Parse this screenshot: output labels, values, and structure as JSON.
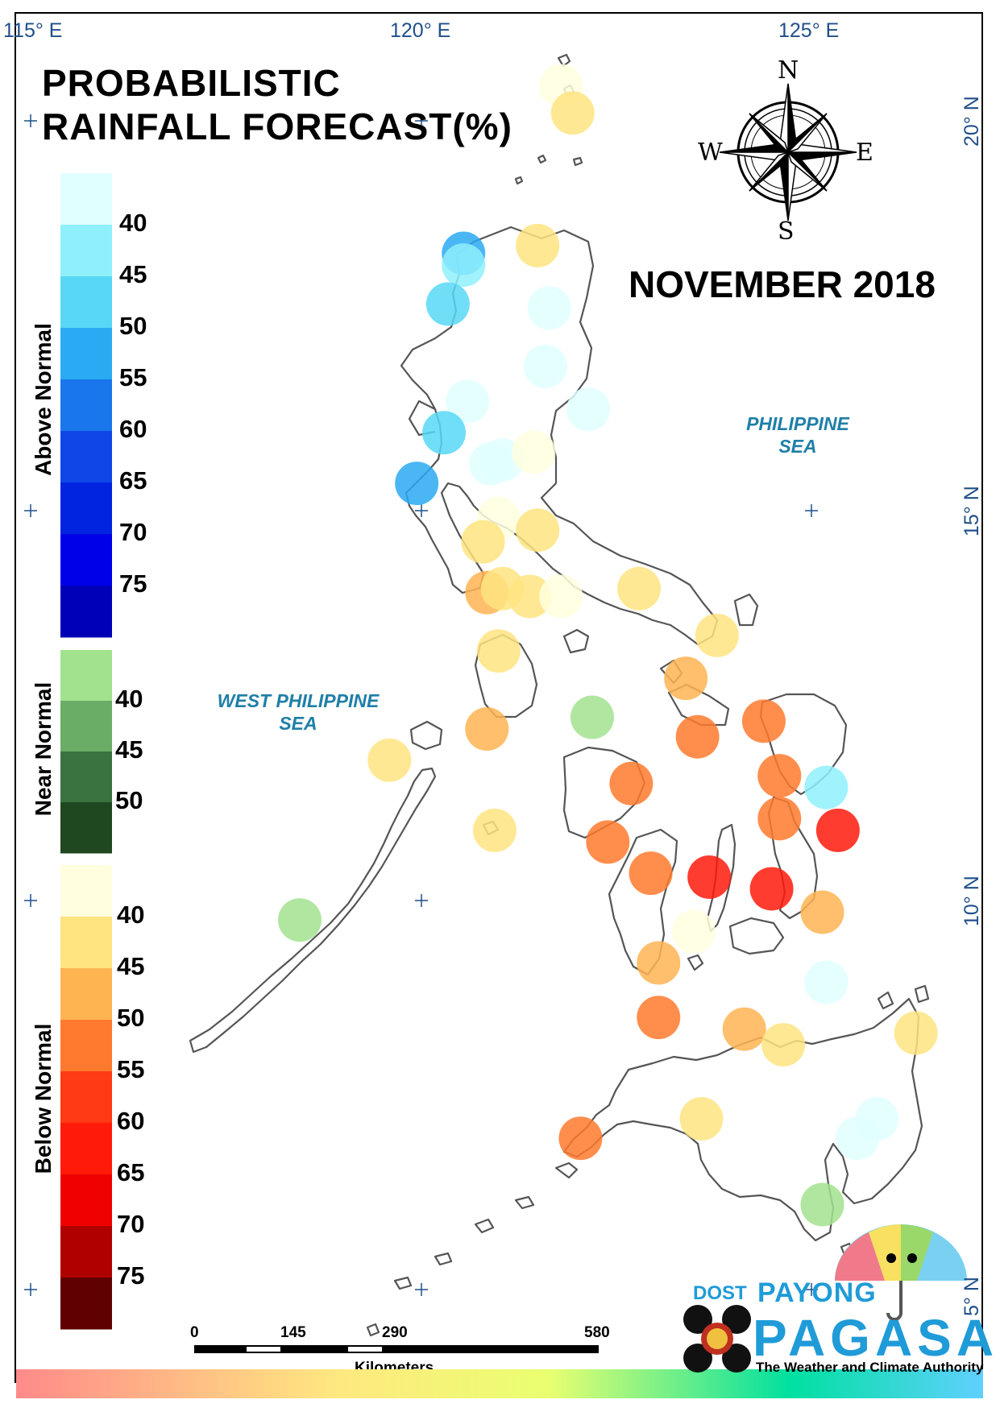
{
  "title_line1": "PROBABILISTIC",
  "title_line2": "RAINFALL FORECAST(%)",
  "period": "NOVEMBER 2018",
  "seas": {
    "east_line1": "PHILIPPINE",
    "east_line2": "SEA",
    "west_line1": "WEST PHILIPPINE",
    "west_line2": "SEA"
  },
  "graticule": {
    "lon": [
      "115° E",
      "120° E",
      "125° E"
    ],
    "lat": [
      "20° N",
      "15° N",
      "10° N",
      "5° N"
    ]
  },
  "compass": {
    "n": "N",
    "s": "S",
    "e": "E",
    "w": "W"
  },
  "legend": {
    "above_title": "Above Normal",
    "near_title": "Near Normal",
    "below_title": "Below Normal",
    "above_labels": [
      "40",
      "45",
      "50",
      "55",
      "60",
      "65",
      "70",
      "75"
    ],
    "near_labels": [
      "40",
      "45",
      "50"
    ],
    "below_labels": [
      "40",
      "45",
      "50",
      "55",
      "60",
      "65",
      "70",
      "75"
    ],
    "above_colors": [
      "#e0ffff",
      "#8ff0fb",
      "#58d8f6",
      "#2aaaf2",
      "#1976ec",
      "#0f46e8",
      "#0024e0",
      "#0000e8",
      "#0000b8"
    ],
    "near_colors": [
      "#a2e28e",
      "#6aad66",
      "#3a7240",
      "#1f4720"
    ],
    "below_colors": [
      "#ffffdf",
      "#ffe480",
      "#ffb452",
      "#ff7a2e",
      "#ff3a14",
      "#ff1a0a",
      "#f00000",
      "#b00000",
      "#600000"
    ]
  },
  "scale_bar": {
    "labels": [
      "0",
      "145",
      "290",
      "580"
    ],
    "unit": "Kilometers"
  },
  "logo": {
    "dost": "DOST",
    "payong": "PAYONG",
    "pagasa": "PAGASA",
    "tagline": "The Weather and Climate Authority"
  },
  "stations": [
    {
      "lon": 121.8,
      "lat": 20.45,
      "color": "#ffffdf"
    },
    {
      "lon": 121.95,
      "lat": 20.1,
      "color": "#ffe480"
    },
    {
      "lon": 120.55,
      "lat": 18.3,
      "color": "#2aaaf2"
    },
    {
      "lon": 120.55,
      "lat": 18.15,
      "color": "#8ff0fb"
    },
    {
      "lon": 120.35,
      "lat": 17.65,
      "color": "#58d8f6"
    },
    {
      "lon": 121.5,
      "lat": 18.4,
      "color": "#ffe480"
    },
    {
      "lon": 121.65,
      "lat": 17.6,
      "color": "#e0ffff"
    },
    {
      "lon": 121.6,
      "lat": 16.85,
      "color": "#e0ffff"
    },
    {
      "lon": 122.15,
      "lat": 16.3,
      "color": "#e0ffff"
    },
    {
      "lon": 120.6,
      "lat": 16.4,
      "color": "#e0ffff"
    },
    {
      "lon": 120.3,
      "lat": 16.0,
      "color": "#58d8f6"
    },
    {
      "lon": 120.9,
      "lat": 15.6,
      "color": "#e0ffff"
    },
    {
      "lon": 121.05,
      "lat": 15.65,
      "color": "#e0ffff"
    },
    {
      "lon": 121.45,
      "lat": 15.75,
      "color": "#ffffdf"
    },
    {
      "lon": 119.95,
      "lat": 15.35,
      "color": "#2aaaf2"
    },
    {
      "lon": 121.0,
      "lat": 14.9,
      "color": "#ffffdf"
    },
    {
      "lon": 120.8,
      "lat": 14.6,
      "color": "#ffe480"
    },
    {
      "lon": 121.5,
      "lat": 14.75,
      "color": "#ffe480"
    },
    {
      "lon": 120.85,
      "lat": 13.95,
      "color": "#ffb452"
    },
    {
      "lon": 121.05,
      "lat": 14.0,
      "color": "#ffe480"
    },
    {
      "lon": 121.4,
      "lat": 13.9,
      "color": "#ffe480"
    },
    {
      "lon": 121.8,
      "lat": 13.9,
      "color": "#ffffdf"
    },
    {
      "lon": 122.8,
      "lat": 14.0,
      "color": "#ffe480"
    },
    {
      "lon": 123.8,
      "lat": 13.4,
      "color": "#ffe480"
    },
    {
      "lon": 121.0,
      "lat": 13.2,
      "color": "#ffe480"
    },
    {
      "lon": 123.4,
      "lat": 12.85,
      "color": "#ffb452"
    },
    {
      "lon": 120.85,
      "lat": 12.2,
      "color": "#ffb452"
    },
    {
      "lon": 122.2,
      "lat": 12.35,
      "color": "#a2e28e"
    },
    {
      "lon": 123.55,
      "lat": 12.1,
      "color": "#ff7a2e"
    },
    {
      "lon": 124.4,
      "lat": 12.3,
      "color": "#ff7a2e"
    },
    {
      "lon": 119.6,
      "lat": 11.8,
      "color": "#ffe480"
    },
    {
      "lon": 122.7,
      "lat": 11.5,
      "color": "#ff7a2e"
    },
    {
      "lon": 124.6,
      "lat": 11.6,
      "color": "#ff7a2e"
    },
    {
      "lon": 125.2,
      "lat": 11.45,
      "color": "#8ff0fb"
    },
    {
      "lon": 124.6,
      "lat": 11.05,
      "color": "#ff7a2e"
    },
    {
      "lon": 125.35,
      "lat": 10.9,
      "color": "#ff1a0a"
    },
    {
      "lon": 120.95,
      "lat": 10.9,
      "color": "#ffe480"
    },
    {
      "lon": 122.4,
      "lat": 10.75,
      "color": "#ff7a2e"
    },
    {
      "lon": 122.95,
      "lat": 10.35,
      "color": "#ff7a2e"
    },
    {
      "lon": 123.7,
      "lat": 10.3,
      "color": "#ff1a0a"
    },
    {
      "lon": 124.5,
      "lat": 10.15,
      "color": "#ff1a0a"
    },
    {
      "lon": 125.15,
      "lat": 9.85,
      "color": "#ffb452"
    },
    {
      "lon": 118.45,
      "lat": 9.75,
      "color": "#a2e28e"
    },
    {
      "lon": 123.5,
      "lat": 9.6,
      "color": "#ffffdf"
    },
    {
      "lon": 123.05,
      "lat": 9.2,
      "color": "#ffb452"
    },
    {
      "lon": 125.2,
      "lat": 8.95,
      "color": "#e0ffff"
    },
    {
      "lon": 123.05,
      "lat": 8.5,
      "color": "#ff7a2e"
    },
    {
      "lon": 124.15,
      "lat": 8.35,
      "color": "#ffb452"
    },
    {
      "lon": 124.65,
      "lat": 8.15,
      "color": "#ffe480"
    },
    {
      "lon": 126.35,
      "lat": 8.3,
      "color": "#ffe480"
    },
    {
      "lon": 123.6,
      "lat": 7.2,
      "color": "#ffe480"
    },
    {
      "lon": 125.85,
      "lat": 7.2,
      "color": "#e0ffff"
    },
    {
      "lon": 125.6,
      "lat": 6.95,
      "color": "#e0ffff"
    },
    {
      "lon": 122.05,
      "lat": 6.95,
      "color": "#ff7a2e"
    },
    {
      "lon": 125.15,
      "lat": 6.1,
      "color": "#a2e28e"
    }
  ]
}
